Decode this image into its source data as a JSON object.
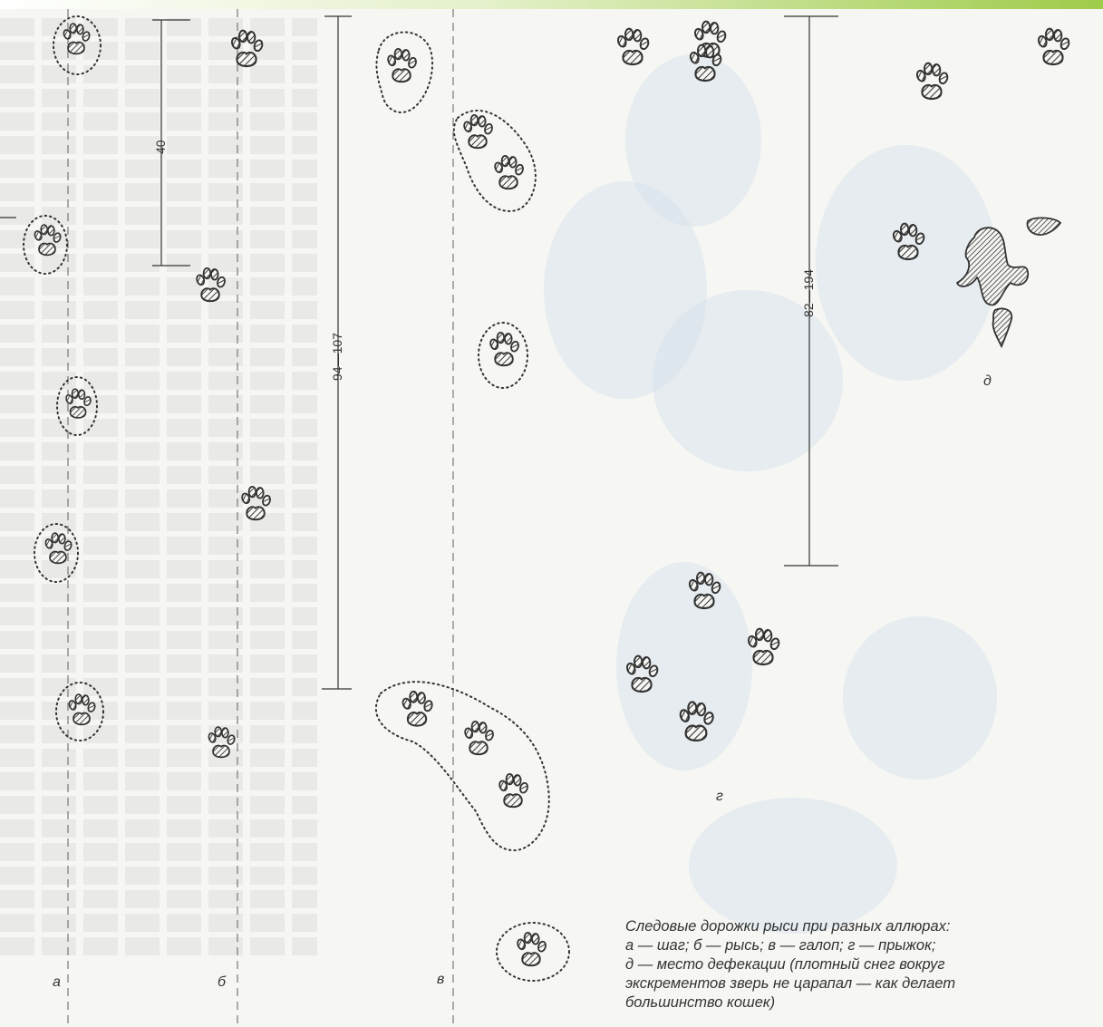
{
  "panels": [
    {
      "id": "a",
      "label": "а"
    },
    {
      "id": "b",
      "label": "б"
    },
    {
      "id": "v",
      "label": "в"
    },
    {
      "id": "g",
      "label": "г"
    },
    {
      "id": "d",
      "label": "д"
    }
  ],
  "dimensions": [
    {
      "id": "a-b",
      "text": "40"
    },
    {
      "id": "v",
      "text": "94—107"
    },
    {
      "id": "g-d",
      "text": "82—194"
    }
  ],
  "caption": {
    "lines": [
      "Следовые дорожки рыси при разных аллюрах:",
      "а — шаг; б — рысь; в — галоп; г — прыжок;",
      "д — место дефекации (плотный снег вокруг",
      "экскрементов зверь не царапал — как делает",
      "большинство кошек)"
    ]
  },
  "colors": {
    "ink": "#333333",
    "paper": "#f6f6f3",
    "bleed": "#d9e3ec"
  }
}
